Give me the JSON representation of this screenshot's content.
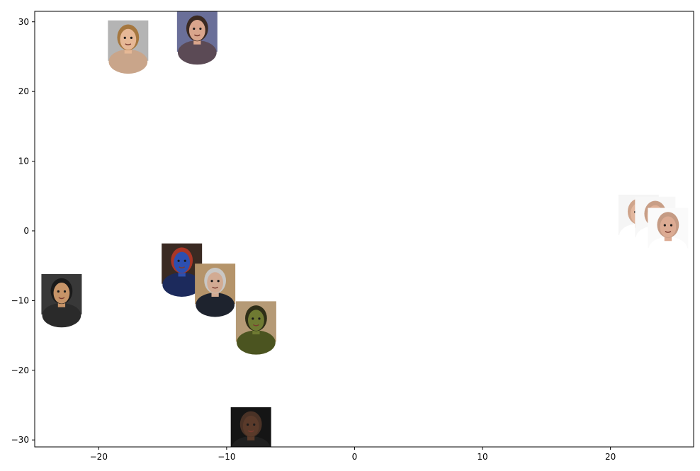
{
  "chart_data": {
    "type": "scatter",
    "title": "",
    "xlabel": "",
    "ylabel": "",
    "xlim": [
      -25.0,
      26.5
    ],
    "ylim": [
      -31.0,
      31.5
    ],
    "x_ticks": [
      -20,
      -10,
      0,
      10,
      20
    ],
    "y_ticks": [
      -30,
      -20,
      -10,
      0,
      10,
      20,
      30
    ],
    "grid": false,
    "legend": "none",
    "marker": "face-thumbnail",
    "points": [
      {
        "id": "blonde-woman",
        "x": -17.7,
        "y": 27.3,
        "skin": "#e6b896",
        "hair": "#a5773f",
        "bg": "#b4b4b4",
        "clothes": "#c9a58a"
      },
      {
        "id": "brunette-woman",
        "x": -12.3,
        "y": 28.6,
        "skin": "#d9a58c",
        "hair": "#3b2a22",
        "bg": "#6a6f99",
        "clothes": "#5b4a55"
      },
      {
        "id": "blue-figure",
        "x": -13.5,
        "y": -4.7,
        "skin": "#2c4fb0",
        "hair": "#a93626",
        "bg": "#3a2a22",
        "clothes": "#1c2a5c"
      },
      {
        "id": "grey-haired-man",
        "x": -10.9,
        "y": -7.6,
        "skin": "#d2ab93",
        "hair": "#c9c7c4",
        "bg": "#b5946a",
        "clothes": "#1e232e"
      },
      {
        "id": "green-giant",
        "x": -7.7,
        "y": -13.0,
        "skin": "#6f7a32",
        "hair": "#2e2e17",
        "bg": "#b59a76",
        "clothes": "#4b5420"
      },
      {
        "id": "smiling-man",
        "x": -22.9,
        "y": -9.1,
        "skin": "#c79468",
        "hair": "#1a1a1a",
        "bg": "#383838",
        "clothes": "#2a2a2a"
      },
      {
        "id": "bald-man-dark-bg",
        "x": -8.1,
        "y": -28.2,
        "skin": "#5a3a2a",
        "hair": "#4a3226",
        "bg": "#151515",
        "clothes": "#202020"
      },
      {
        "id": "bald-man-1",
        "x": 22.2,
        "y": 2.3,
        "skin": "#e2b79e",
        "hair": "#cfa48b",
        "bg": "#f5f5f5",
        "clothes": "#ffffff"
      },
      {
        "id": "bald-man-2",
        "x": 23.5,
        "y": 2.0,
        "skin": "#e0b096",
        "hair": "#c89e86",
        "bg": "#f7f7f7",
        "clothes": "#ffffff"
      },
      {
        "id": "bald-man-3",
        "x": 24.5,
        "y": 0.4,
        "skin": "#dcab93",
        "hair": "#c59b84",
        "bg": "#fafafa",
        "clothes": "#ffffff"
      }
    ]
  }
}
